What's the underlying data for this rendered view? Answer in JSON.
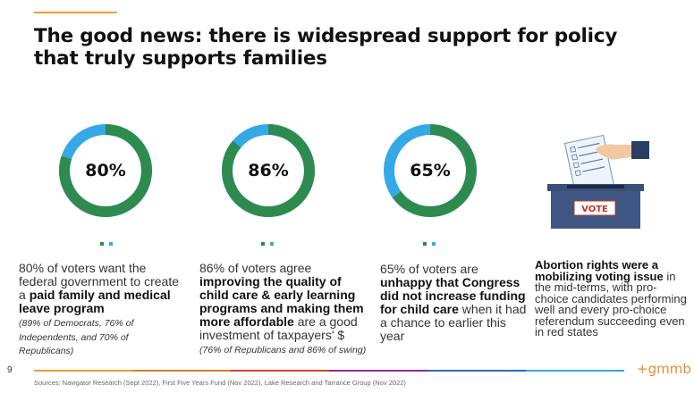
{
  "title": "The good news: there is widespread support for policy that truly supports families",
  "colors": {
    "accent": "#f0a02a",
    "green": "#2e8b4f",
    "blue": "#35a8e6"
  },
  "stats": [
    {
      "percent": "80%",
      "value": 80,
      "text_before": "80% of voters want the federal government to create a ",
      "text_bold": "paid family and medical leave program",
      "text_after": "",
      "note": "(89% of Democrats, 76% of Independents, and 70% of Republicans)"
    },
    {
      "percent": "86%",
      "value": 86,
      "text_before": "86% of voters agree ",
      "text_bold": "improving the quality of child care & early learning programs and making them more affordable",
      "text_after": " are a good investment of taxpayers' $ ",
      "note": "(76% of Republicans and 86% of swing)"
    },
    {
      "percent": "65%",
      "value": 65,
      "text_before": "65% of voters are ",
      "text_bold": "unhappy that Congress did not increase funding for child care",
      "text_after": " when it had a chance to earlier this year",
      "note": ""
    }
  ],
  "ballot": {
    "vote_label": "VOTE",
    "text_bold": "Abortion rights were a mobilizing voting issue",
    "text_after": " in the mid-terms, with pro-choice candidates performing well and every pro-choice referendum succeeding even in red states"
  },
  "footer": {
    "page_number": "9",
    "logo": "+gmmb",
    "sources": "Sources: Navigator Research (Sept 2022), First Five Years Fund (Nov 2022), Lake Research and Tarrance Group (Nov 2022)",
    "line_colors": [
      "#f0a02a",
      "#e07b2a",
      "#d6452f",
      "#8b2a8b",
      "#2e6bb8",
      "#35a8e6"
    ]
  }
}
